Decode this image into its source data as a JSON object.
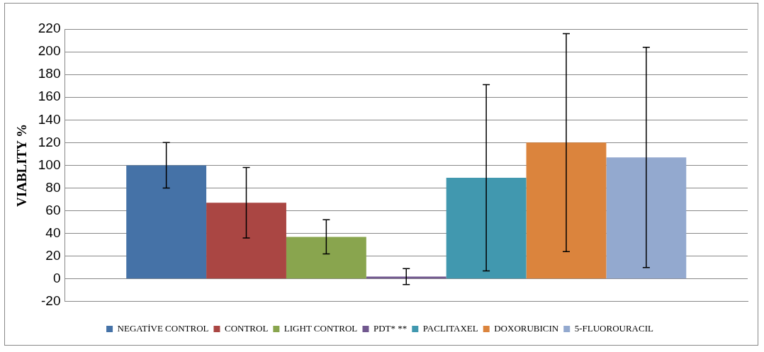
{
  "chart_data": {
    "type": "bar",
    "ylabel": "VIABLITY %",
    "categories": [
      null
    ],
    "series": [
      {
        "name": "NEGATİVE CONTROL",
        "color": "#4572a7",
        "values": [
          100
        ],
        "errors": [
          20
        ]
      },
      {
        "name": "CONTROL",
        "color": "#aa4643",
        "values": [
          67
        ],
        "errors": [
          31
        ]
      },
      {
        "name": "LIGHT CONTROL",
        "color": "#89a54e",
        "values": [
          37
        ],
        "errors": [
          15
        ]
      },
      {
        "name": "PDT* **",
        "color": "#71588f",
        "values": [
          2
        ],
        "errors": [
          7
        ]
      },
      {
        "name": "PACLITAXEL",
        "color": "#4198af",
        "values": [
          89
        ],
        "errors": [
          82
        ]
      },
      {
        "name": "DOXORUBICIN",
        "color": "#db843d",
        "values": [
          120
        ],
        "errors": [
          96
        ]
      },
      {
        "name": "5-FLUOROURACIL",
        "color": "#93a9cf",
        "values": [
          107
        ],
        "errors": [
          97
        ]
      }
    ],
    "ylim": [
      -20,
      220
    ],
    "yticks": [
      -20,
      0,
      20,
      40,
      60,
      80,
      100,
      120,
      140,
      160,
      180,
      200,
      220
    ],
    "grid": "y",
    "legend": "bottom"
  }
}
